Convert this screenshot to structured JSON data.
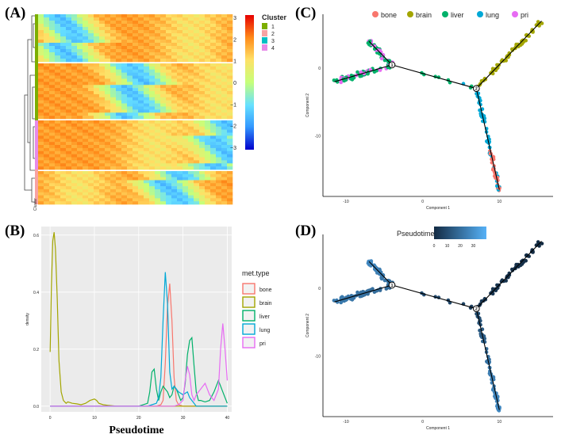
{
  "figure": {
    "panel_labels": [
      "(A)",
      "(B)",
      "(C)",
      "(D)"
    ]
  },
  "chart_data": [
    {
      "panel": "A",
      "type": "heatmap",
      "colorbar": {
        "ticks": [
          "3",
          "2",
          "1",
          "0",
          "−1",
          "−2",
          "−3"
        ],
        "range": [
          -3,
          3
        ],
        "colors": [
          "#0000cc",
          "#3399ff",
          "#66e0ff",
          "#c6ff7a",
          "#ffe066",
          "#ff8c1a",
          "#e60000"
        ]
      },
      "cluster_legend": {
        "title": "Cluster",
        "items": [
          {
            "label": "1",
            "color": "#7cae00"
          },
          {
            "label": "2",
            "color": "#f8a2a2"
          },
          {
            "label": "3",
            "color": "#00bfc4"
          },
          {
            "label": "4",
            "color": "#e78ae8"
          }
        ]
      },
      "row_annotation": "Cluster",
      "n_blocks": 4
    },
    {
      "panel": "B",
      "type": "line",
      "xlabel": "Pseudotime",
      "ylabel": "density",
      "xlim": [
        -2,
        41
      ],
      "ylim": [
        -0.02,
        0.63
      ],
      "xticks": [
        0,
        10,
        20,
        30,
        40
      ],
      "yticks": [
        0.0,
        0.2,
        0.4,
        0.6
      ],
      "yticklabels": [
        "0.0",
        "0.2",
        "0.4",
        "0.6"
      ],
      "legend_title": "met.type",
      "series": [
        {
          "name": "bone",
          "color": "#f8766d",
          "x": [
            0,
            24,
            25,
            25.5,
            26,
            26.5,
            27,
            27.5,
            28,
            28.5,
            29,
            30,
            40
          ],
          "y": [
            0,
            0,
            0.005,
            0.02,
            0.15,
            0.35,
            0.43,
            0.3,
            0.1,
            0.02,
            0.005,
            0,
            0
          ]
        },
        {
          "name": "brain",
          "color": "#a3a500",
          "x": [
            0,
            0.3,
            0.6,
            0.9,
            1.2,
            1.6,
            2,
            2.5,
            3,
            3.6,
            4,
            5,
            6,
            7,
            8,
            9,
            10,
            10.5,
            11,
            12,
            13,
            15,
            20,
            40
          ],
          "y": [
            0.19,
            0.42,
            0.58,
            0.61,
            0.55,
            0.38,
            0.16,
            0.05,
            0.02,
            0.01,
            0.015,
            0.01,
            0.008,
            0.005,
            0.01,
            0.02,
            0.025,
            0.02,
            0.01,
            0.005,
            0.003,
            0,
            0,
            0
          ]
        },
        {
          "name": "liver",
          "color": "#00b16a",
          "x": [
            0,
            20,
            22,
            22.5,
            23,
            23.5,
            24,
            24.5,
            25,
            25.5,
            26,
            26.5,
            27,
            27.5,
            28,
            28.5,
            29,
            29.5,
            30,
            30.5,
            31,
            31.5,
            32,
            32.5,
            33,
            33.5,
            34,
            35,
            36,
            37,
            38,
            39,
            40
          ],
          "y": [
            0,
            0,
            0.01,
            0.05,
            0.12,
            0.13,
            0.06,
            0.02,
            0.05,
            0.07,
            0.06,
            0.05,
            0.03,
            0.04,
            0.07,
            0.06,
            0.04,
            0.02,
            0.03,
            0.08,
            0.18,
            0.23,
            0.24,
            0.14,
            0.05,
            0.02,
            0.02,
            0.015,
            0.02,
            0.05,
            0.09,
            0.05,
            0.01
          ]
        },
        {
          "name": "lung",
          "color": "#00a8d6",
          "x": [
            0,
            22,
            23,
            24,
            24.5,
            25,
            25.5,
            26,
            26.5,
            27,
            27.5,
            28,
            29,
            30,
            31,
            31.5,
            32,
            32.5,
            33,
            34,
            35,
            40
          ],
          "y": [
            0,
            0,
            0.005,
            0.01,
            0.03,
            0.1,
            0.3,
            0.47,
            0.36,
            0.12,
            0.06,
            0.07,
            0.05,
            0.04,
            0.05,
            0.03,
            0.02,
            0.01,
            0,
            0,
            0,
            0
          ]
        },
        {
          "name": "pri",
          "color": "#e76bf3",
          "x": [
            0,
            26,
            28,
            29,
            30,
            30.5,
            31,
            31.5,
            32,
            32.5,
            33,
            34,
            35,
            35.5,
            36,
            37,
            38,
            38.5,
            39,
            39.5,
            40
          ],
          "y": [
            0,
            0,
            0,
            0.005,
            0.02,
            0.09,
            0.14,
            0.11,
            0.04,
            0.02,
            0.04,
            0.06,
            0.08,
            0.06,
            0.04,
            0.02,
            0.06,
            0.2,
            0.29,
            0.2,
            0.09
          ]
        }
      ]
    },
    {
      "panel": "C",
      "type": "scatter",
      "xlabel": "Component 1",
      "ylabel": "Component 2",
      "xlim": [
        -13,
        17
      ],
      "ylim": [
        -19,
        8
      ],
      "xticks": [
        -10,
        0,
        10
      ],
      "yticks": [
        0,
        -10
      ],
      "legend_items": [
        {
          "name": "bone",
          "color": "#f8766d"
        },
        {
          "name": "brain",
          "color": "#a3a500"
        },
        {
          "name": "liver",
          "color": "#00b16a"
        },
        {
          "name": "lung",
          "color": "#00a8d6"
        },
        {
          "name": "pri",
          "color": "#e76bf3"
        }
      ],
      "branch_points": [
        {
          "label": "1",
          "x": -4,
          "y": 0.5
        },
        {
          "label": "2",
          "x": 7,
          "y": -3
        }
      ],
      "trajectory": [
        [
          -11.5,
          -2
        ],
        [
          -4,
          0.5
        ],
        [
          -7,
          4
        ],
        [
          -4,
          0.5
        ],
        [
          7,
          -3
        ],
        [
          15.5,
          7
        ],
        [
          7,
          -3
        ],
        [
          10,
          -18
        ]
      ]
    },
    {
      "panel": "D",
      "type": "scatter",
      "xlabel": "Component 1",
      "ylabel": "Component 2",
      "xlim": [
        -13,
        17
      ],
      "ylim": [
        -19,
        8
      ],
      "xticks": [
        -10,
        0,
        10
      ],
      "yticks": [
        0,
        -10
      ],
      "colorbar_title": "Pseudotime",
      "colorbar_ticks": [
        0,
        10,
        20,
        30
      ],
      "colorbar_range": [
        0,
        40
      ],
      "branch_points": [
        {
          "label": "1",
          "x": -4,
          "y": 0.5
        },
        {
          "label": "2",
          "x": 7,
          "y": -3
        }
      ]
    }
  ]
}
